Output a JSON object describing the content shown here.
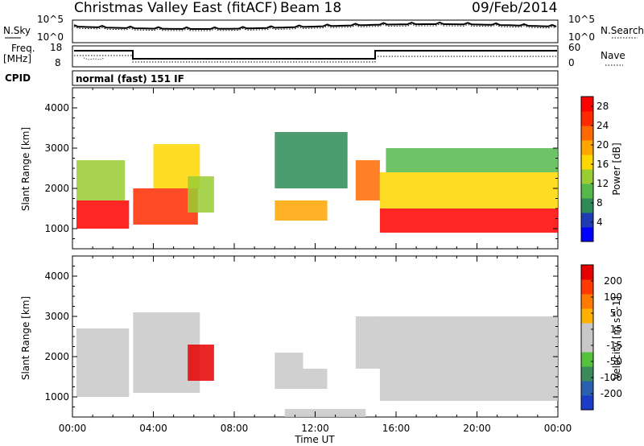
{
  "header": {
    "station": "Christmas Valley East (fitACF)",
    "beam": "Beam 18",
    "date": "09/Feb/2014"
  },
  "info_panels": {
    "nsky_label": "N.Sky",
    "nsearch_label": "N.Search",
    "noise_ticks": [
      "10^5",
      "10^0"
    ],
    "freq_label_line1": "Freq.",
    "freq_label_line2": "[MHz]",
    "freq_ticks": [
      "18",
      "8"
    ],
    "nave_label": "Nave",
    "nave_ticks": [
      "60",
      "0"
    ],
    "cpid_label": "CPID",
    "cpid_value": "normal (fast) 151 IF"
  },
  "colors": {
    "power_scale": [
      "#0000ff",
      "#1f3cb4",
      "#2e8b57",
      "#55b84b",
      "#9acd32",
      "#ffd700",
      "#ffa500",
      "#ff6a00",
      "#ff2a00",
      "#ff0000"
    ],
    "velocity_scale": [
      "#1a3cc8",
      "#2b5fb0",
      "#3a8a5a",
      "#55c23c",
      "#c8c8c8",
      "#c8c8c8",
      "#ffb000",
      "#ff7a00",
      "#ff3a00",
      "#e60000"
    ]
  },
  "chart_data": [
    {
      "type": "heatmap",
      "name": "power",
      "ylabel": "Slant Range [km]",
      "y_ticks": [
        "1000",
        "2000",
        "3000",
        "4000"
      ],
      "ylim": [
        500,
        4500
      ],
      "x_ticks": [
        "00:00",
        "04:00",
        "08:00",
        "12:00",
        "16:00",
        "20:00",
        "00:00"
      ],
      "colorbar_label": "Power [dB]",
      "colorbar_ticks": [
        "4",
        "8",
        "12",
        "16",
        "20",
        "24",
        "28"
      ],
      "colorbar_range": [
        0,
        30
      ],
      "regions": [
        {
          "t0": 0.2,
          "t1": 2.8,
          "r0": 1000,
          "r1": 1700,
          "value": 27
        },
        {
          "t0": 0.2,
          "t1": 2.6,
          "r0": 1700,
          "r1": 2700,
          "value": 14
        },
        {
          "t0": 3.0,
          "t1": 6.2,
          "r0": 1100,
          "r1": 2000,
          "value": 25
        },
        {
          "t0": 4.0,
          "t1": 6.3,
          "r0": 2000,
          "r1": 3100,
          "value": 15
        },
        {
          "t0": 5.7,
          "t1": 7.0,
          "r0": 1400,
          "r1": 2300,
          "value": 12
        },
        {
          "t0": 10.0,
          "t1": 12.6,
          "r0": 1200,
          "r1": 1700,
          "value": 18
        },
        {
          "t0": 10.0,
          "t1": 13.6,
          "r0": 2000,
          "r1": 3400,
          "value": 8
        },
        {
          "t0": 14.0,
          "t1": 15.2,
          "r0": 1700,
          "r1": 2700,
          "value": 22
        },
        {
          "t0": 15.2,
          "t1": 24.0,
          "r0": 900,
          "r1": 1500,
          "value": 27
        },
        {
          "t0": 15.2,
          "t1": 24.0,
          "r0": 1500,
          "r1": 2400,
          "value": 16
        },
        {
          "t0": 15.5,
          "t1": 24.0,
          "r0": 2400,
          "r1": 3000,
          "value": 10
        }
      ]
    },
    {
      "type": "heatmap",
      "name": "velocity",
      "ylabel": "Slant Range [km]",
      "xlabel": "Time UT",
      "y_ticks": [
        "1000",
        "2000",
        "3000",
        "4000"
      ],
      "ylim": [
        500,
        4500
      ],
      "x_ticks": [
        "00:00",
        "04:00",
        "08:00",
        "12:00",
        "16:00",
        "20:00",
        "00:00"
      ],
      "colorbar_label": "Velocity [m s^-1]",
      "colorbar_ticks": [
        "200",
        "100",
        "50",
        "15",
        "-15",
        "-50",
        "-100",
        "-200"
      ],
      "colorbar_range": [
        -250,
        250
      ],
      "regions": [
        {
          "t0": 0.2,
          "t1": 2.8,
          "r0": 1000,
          "r1": 2700,
          "value": 0
        },
        {
          "t0": 3.0,
          "t1": 6.3,
          "r0": 1100,
          "r1": 3100,
          "value": 0
        },
        {
          "t0": 5.7,
          "t1": 7.0,
          "r0": 1400,
          "r1": 2300,
          "value": 220
        },
        {
          "t0": 10.0,
          "t1": 11.4,
          "r0": 1200,
          "r1": 2100,
          "value": 40
        },
        {
          "t0": 11.4,
          "t1": 12.6,
          "r0": 1200,
          "r1": 1700,
          "value": 0
        },
        {
          "t0": 14.0,
          "t1": 15.2,
          "r0": 1700,
          "r1": 3000,
          "value": 40
        },
        {
          "t0": 15.2,
          "t1": 24.0,
          "r0": 900,
          "r1": 3000,
          "value": 0
        },
        {
          "t0": 10.5,
          "t1": 14.5,
          "r0": 500,
          "r1": 700,
          "value": -40
        }
      ]
    }
  ]
}
